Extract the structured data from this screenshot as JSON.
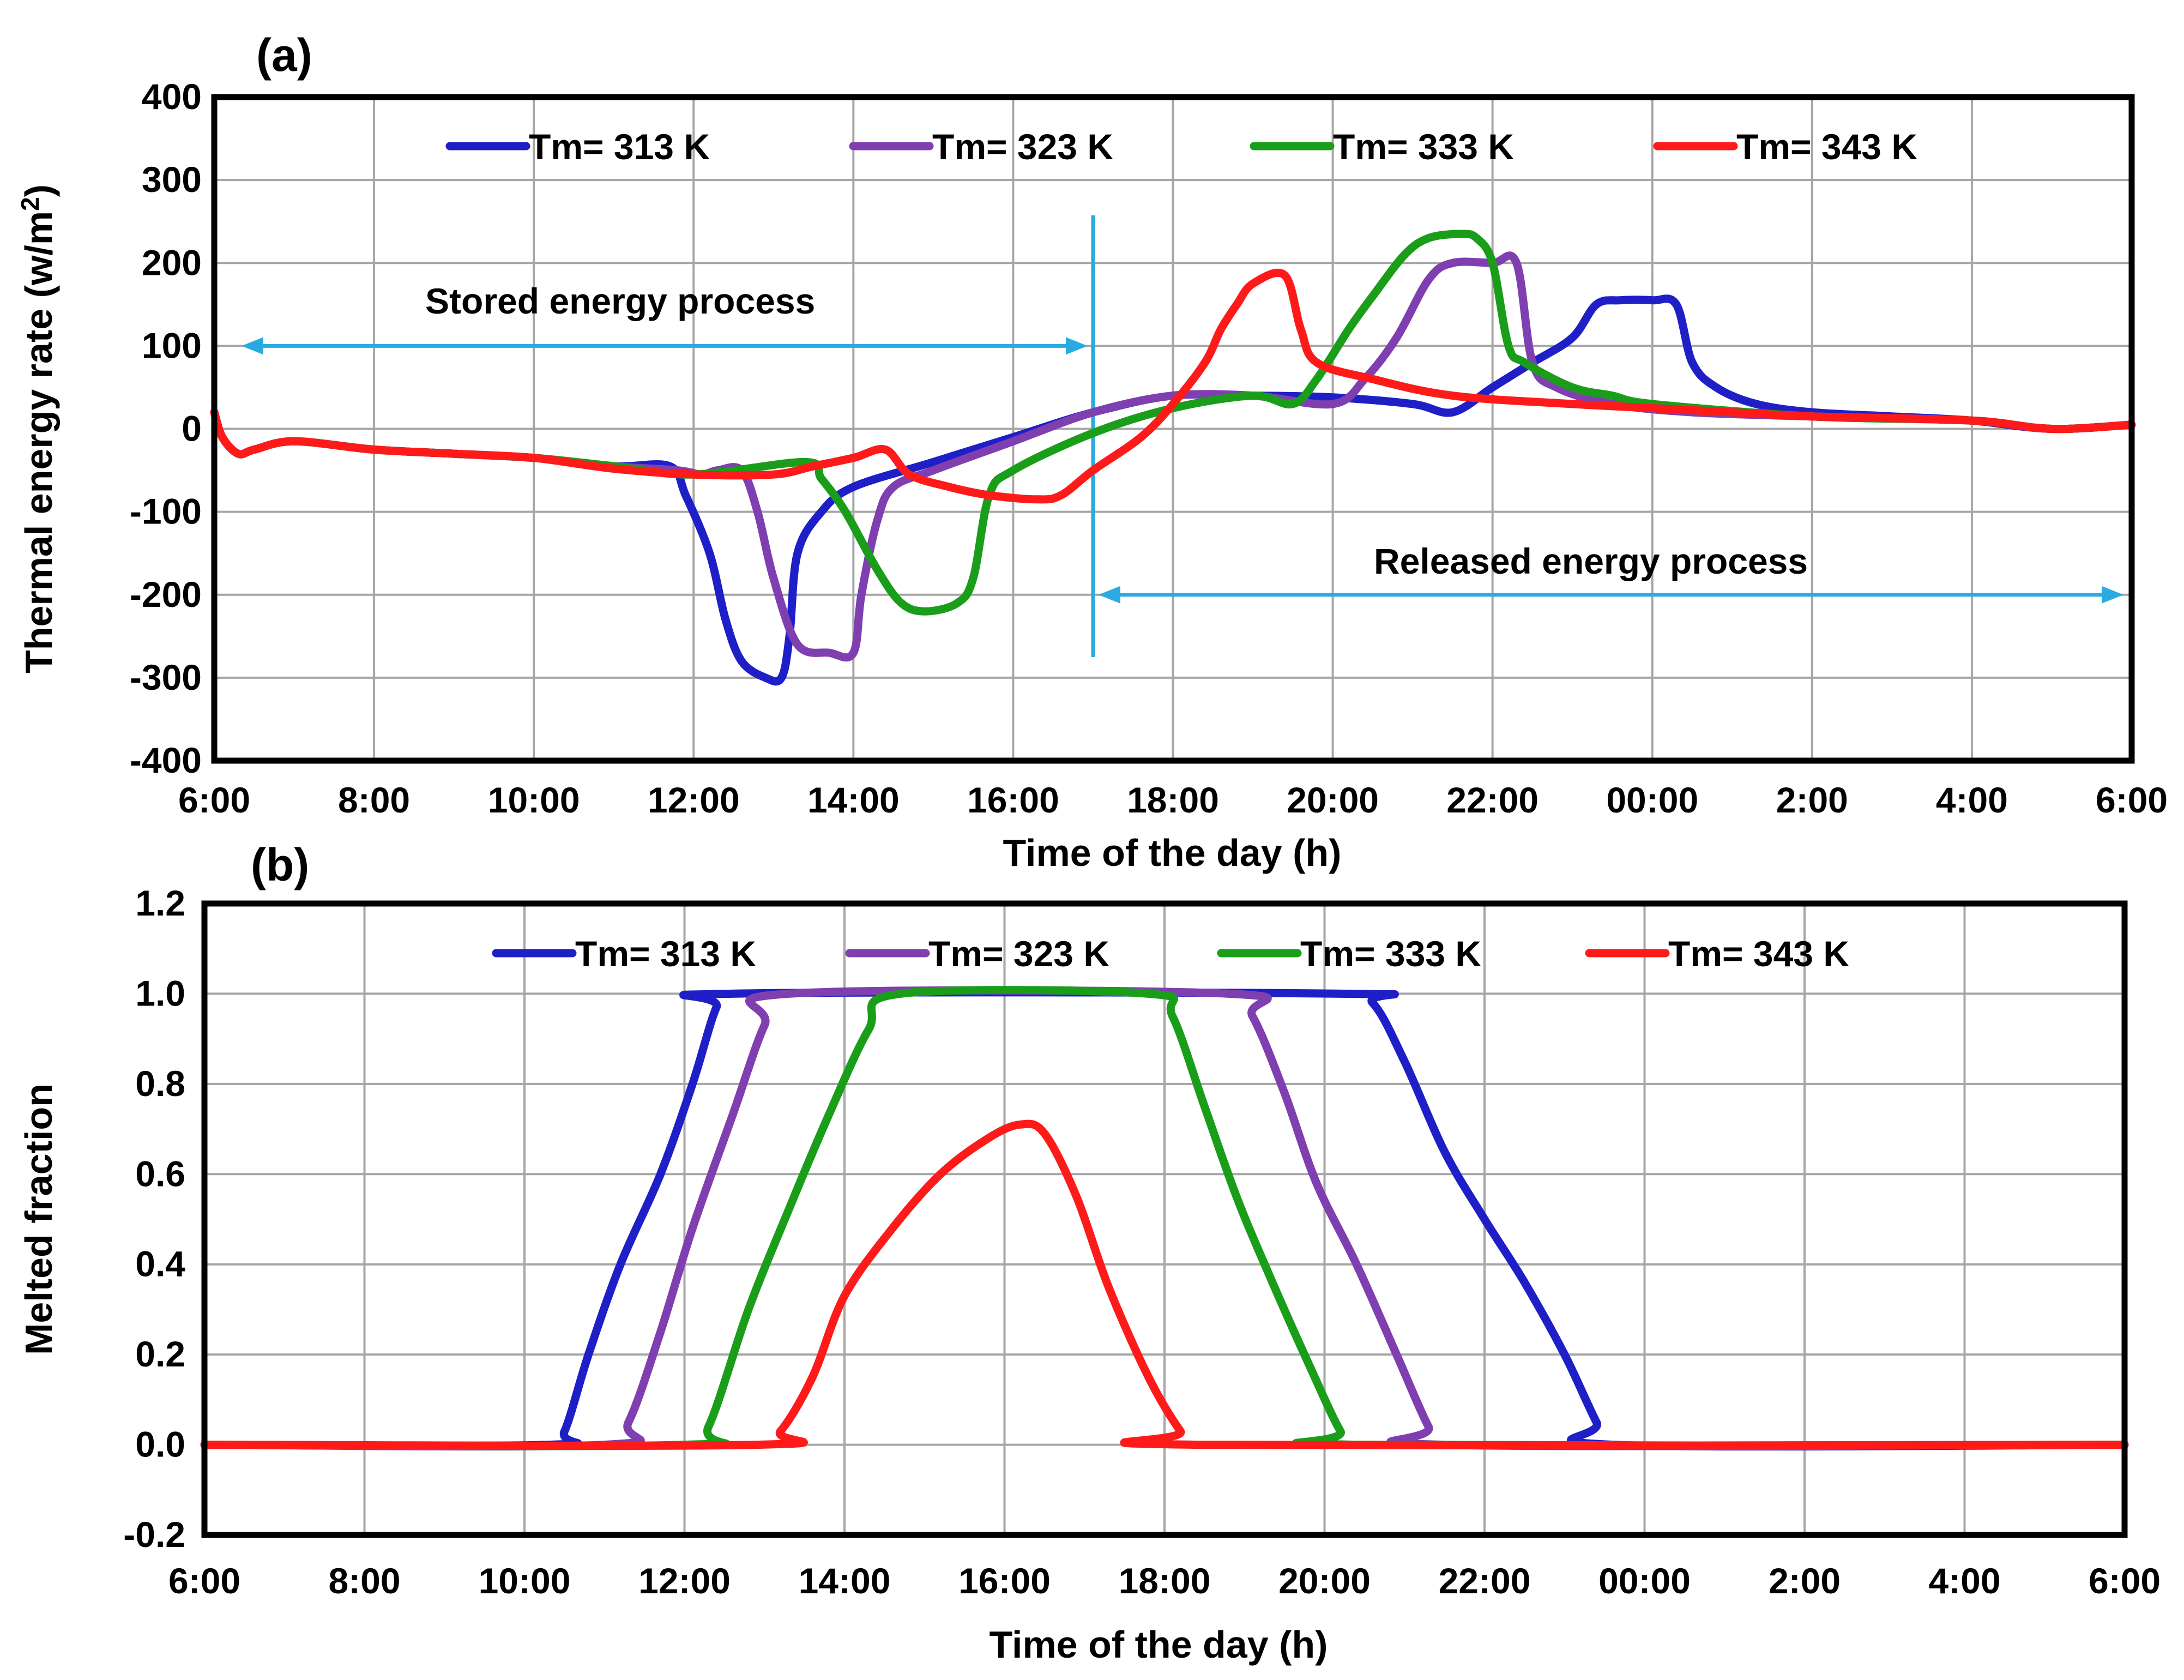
{
  "chart_data": [
    {
      "type": "line",
      "panel_label": "(a)",
      "ylabel": "Thermal energy  rate (w/m2)",
      "xlabel": "Time of the day (h)",
      "ylim": [
        -400,
        400
      ],
      "yticks": [
        {
          "v": 400,
          "label": "400"
        },
        {
          "v": 300,
          "label": "300"
        },
        {
          "v": 200,
          "label": "200"
        },
        {
          "v": 100,
          "label": "100"
        },
        {
          "v": 0,
          "label": "0"
        },
        {
          "v": -100,
          "label": "-100"
        },
        {
          "v": -200,
          "label": "-200"
        },
        {
          "v": -300,
          "label": "-300"
        },
        {
          "v": -400,
          "label": "-400"
        }
      ],
      "xlim": [
        0,
        24
      ],
      "xticks": [
        "6:00",
        "8:00",
        "10:00",
        "12:00",
        "14:00",
        "16:00",
        "18:00",
        "20:00",
        "22:00",
        "00:00",
        "2:00",
        "4:00",
        "6:00"
      ],
      "legend": [
        "Tm= 313 K",
        "Tm= 323 K",
        "Tm= 333 K",
        "Tm= 343 K"
      ],
      "annotations": {
        "stored": "Stored energy process",
        "released": "Released energy process",
        "divider_hours": 11.0
      },
      "series": [
        {
          "name": "Tm= 313 K",
          "color": "#1f1fc8",
          "points": [
            [
              0,
              20
            ],
            [
              0.1,
              -10
            ],
            [
              0.3,
              -30
            ],
            [
              0.5,
              -25
            ],
            [
              1,
              -15
            ],
            [
              2,
              -25
            ],
            [
              3,
              -30
            ],
            [
              4,
              -35
            ],
            [
              5,
              -45
            ],
            [
              5.7,
              -45
            ],
            [
              5.9,
              -80
            ],
            [
              6.2,
              -150
            ],
            [
              6.4,
              -230
            ],
            [
              6.6,
              -280
            ],
            [
              6.9,
              -300
            ],
            [
              7.1,
              -300
            ],
            [
              7.2,
              -250
            ],
            [
              7.3,
              -150
            ],
            [
              7.6,
              -100
            ],
            [
              8,
              -70
            ],
            [
              9,
              -40
            ],
            [
              10,
              -10
            ],
            [
              11,
              20
            ],
            [
              12,
              40
            ],
            [
              13,
              40
            ],
            [
              14,
              38
            ],
            [
              15,
              30
            ],
            [
              15.5,
              20
            ],
            [
              16,
              50
            ],
            [
              16.5,
              80
            ],
            [
              17,
              110
            ],
            [
              17.3,
              150
            ],
            [
              17.6,
              155
            ],
            [
              18,
              155
            ],
            [
              18.3,
              150
            ],
            [
              18.5,
              80
            ],
            [
              18.8,
              50
            ],
            [
              19.3,
              30
            ],
            [
              20,
              20
            ],
            [
              21,
              15
            ],
            [
              22,
              10
            ],
            [
              23,
              0
            ],
            [
              24,
              5
            ]
          ]
        },
        {
          "name": "Tm= 323 K",
          "color": "#7f3fb0",
          "points": [
            [
              0,
              20
            ],
            [
              0.1,
              -10
            ],
            [
              0.3,
              -30
            ],
            [
              0.5,
              -25
            ],
            [
              1,
              -15
            ],
            [
              2,
              -25
            ],
            [
              3,
              -30
            ],
            [
              4,
              -35
            ],
            [
              5,
              -45
            ],
            [
              5.8,
              -50
            ],
            [
              6.1,
              -55
            ],
            [
              6.3,
              -50
            ],
            [
              6.6,
              -50
            ],
            [
              6.8,
              -100
            ],
            [
              7.0,
              -180
            ],
            [
              7.3,
              -260
            ],
            [
              7.7,
              -270
            ],
            [
              8.0,
              -270
            ],
            [
              8.1,
              -200
            ],
            [
              8.3,
              -110
            ],
            [
              8.5,
              -70
            ],
            [
              9,
              -50
            ],
            [
              10,
              -15
            ],
            [
              11,
              20
            ],
            [
              12,
              40
            ],
            [
              13,
              40
            ],
            [
              14,
              30
            ],
            [
              14.4,
              60
            ],
            [
              14.8,
              110
            ],
            [
              15.2,
              180
            ],
            [
              15.5,
              200
            ],
            [
              16,
              200
            ],
            [
              16.3,
              200
            ],
            [
              16.5,
              80
            ],
            [
              16.8,
              50
            ],
            [
              17.5,
              30
            ],
            [
              18.5,
              20
            ],
            [
              20,
              15
            ],
            [
              22,
              10
            ],
            [
              23,
              0
            ],
            [
              24,
              5
            ]
          ]
        },
        {
          "name": "Tm= 333 K",
          "color": "#1a9e1a",
          "points": [
            [
              0,
              20
            ],
            [
              0.1,
              -10
            ],
            [
              0.3,
              -30
            ],
            [
              0.5,
              -25
            ],
            [
              1,
              -15
            ],
            [
              2,
              -25
            ],
            [
              3,
              -30
            ],
            [
              4,
              -35
            ],
            [
              5,
              -45
            ],
            [
              6,
              -55
            ],
            [
              7.4,
              -40
            ],
            [
              7.6,
              -60
            ],
            [
              7.9,
              -100
            ],
            [
              8.3,
              -170
            ],
            [
              8.6,
              -210
            ],
            [
              8.9,
              -220
            ],
            [
              9.3,
              -210
            ],
            [
              9.5,
              -180
            ],
            [
              9.7,
              -80
            ],
            [
              10,
              -50
            ],
            [
              11,
              -5
            ],
            [
              12,
              25
            ],
            [
              13,
              40
            ],
            [
              13.5,
              30
            ],
            [
              13.8,
              60
            ],
            [
              14.2,
              120
            ],
            [
              14.5,
              160
            ],
            [
              14.9,
              210
            ],
            [
              15.2,
              230
            ],
            [
              15.6,
              235
            ],
            [
              15.8,
              230
            ],
            [
              16.0,
              200
            ],
            [
              16.2,
              100
            ],
            [
              16.4,
              80
            ],
            [
              17,
              50
            ],
            [
              17.5,
              40
            ],
            [
              18,
              30
            ],
            [
              20,
              15
            ],
            [
              22,
              10
            ],
            [
              23,
              0
            ],
            [
              24,
              5
            ]
          ]
        },
        {
          "name": "Tm= 343 K",
          "color": "#ff1a1a",
          "points": [
            [
              0,
              20
            ],
            [
              0.1,
              -10
            ],
            [
              0.3,
              -30
            ],
            [
              0.5,
              -25
            ],
            [
              1,
              -15
            ],
            [
              2,
              -25
            ],
            [
              3,
              -30
            ],
            [
              4,
              -35
            ],
            [
              5,
              -48
            ],
            [
              6,
              -55
            ],
            [
              7,
              -55
            ],
            [
              7.5,
              -45
            ],
            [
              8.0,
              -35
            ],
            [
              8.4,
              -25
            ],
            [
              8.7,
              -55
            ],
            [
              9.2,
              -70
            ],
            [
              9.7,
              -80
            ],
            [
              10.3,
              -85
            ],
            [
              10.6,
              -80
            ],
            [
              11,
              -50
            ],
            [
              11.6,
              -10
            ],
            [
              12,
              30
            ],
            [
              12.4,
              80
            ],
            [
              12.6,
              120
            ],
            [
              12.8,
              150
            ],
            [
              13.0,
              175
            ],
            [
              13.4,
              185
            ],
            [
              13.6,
              120
            ],
            [
              13.8,
              80
            ],
            [
              14.5,
              60
            ],
            [
              15.5,
              40
            ],
            [
              17,
              30
            ],
            [
              18,
              25
            ],
            [
              19,
              20
            ],
            [
              20,
              15
            ],
            [
              22,
              10
            ],
            [
              23,
              0
            ],
            [
              24,
              5
            ]
          ]
        }
      ]
    },
    {
      "type": "line",
      "panel_label": "(b)",
      "ylabel": "Melted  fraction",
      "xlabel": "Time of the day (h)",
      "ylim": [
        -0.2,
        1.2
      ],
      "yticks": [
        {
          "v": 1.2,
          "label": "1.2"
        },
        {
          "v": 1.0,
          "label": "1.0"
        },
        {
          "v": 0.8,
          "label": "0.8"
        },
        {
          "v": 0.6,
          "label": "0.6"
        },
        {
          "v": 0.4,
          "label": "0.4"
        },
        {
          "v": 0.2,
          "label": "0.2"
        },
        {
          "v": 0.0,
          "label": "0.0"
        },
        {
          "v": -0.2,
          "label": "-0.2"
        }
      ],
      "xlim": [
        0,
        24
      ],
      "xticks": [
        "6:00",
        "8:00",
        "10:00",
        "12:00",
        "14:00",
        "16:00",
        "18:00",
        "20:00",
        "22:00",
        "00:00",
        "2:00",
        "4:00",
        "6:00"
      ],
      "legend": [
        "Tm= 313 K",
        "Tm= 323 K",
        "Tm= 333 K",
        "Tm= 343 K"
      ],
      "series": [
        {
          "name": "Tm= 313 K",
          "color": "#1f1fc8",
          "points": [
            [
              0,
              0
            ],
            [
              4.3,
              0
            ],
            [
              4.5,
              0.03
            ],
            [
              4.8,
              0.2
            ],
            [
              5.2,
              0.4
            ],
            [
              5.7,
              0.6
            ],
            [
              6.1,
              0.8
            ],
            [
              6.4,
              0.97
            ],
            [
              6.6,
              1.0
            ],
            [
              14.2,
              1.0
            ],
            [
              14.6,
              0.98
            ],
            [
              15,
              0.85
            ],
            [
              15.5,
              0.65
            ],
            [
              16,
              0.5
            ],
            [
              16.5,
              0.36
            ],
            [
              17,
              0.2
            ],
            [
              17.4,
              0.05
            ],
            [
              17.6,
              0
            ],
            [
              24,
              0
            ]
          ]
        },
        {
          "name": "Tm= 323 K",
          "color": "#7f3fb0",
          "points": [
            [
              0,
              0
            ],
            [
              5.0,
              0
            ],
            [
              5.3,
              0.05
            ],
            [
              5.7,
              0.25
            ],
            [
              6.1,
              0.48
            ],
            [
              6.6,
              0.73
            ],
            [
              7.0,
              0.93
            ],
            [
              7.3,
              1.0
            ],
            [
              12.8,
              1.0
            ],
            [
              13.1,
              0.95
            ],
            [
              13.5,
              0.78
            ],
            [
              13.9,
              0.58
            ],
            [
              14.4,
              0.4
            ],
            [
              14.9,
              0.2
            ],
            [
              15.3,
              0.04
            ],
            [
              15.5,
              0
            ],
            [
              24,
              0
            ]
          ]
        },
        {
          "name": "Tm= 333 K",
          "color": "#1a9e1a",
          "points": [
            [
              0,
              0
            ],
            [
              6.0,
              0
            ],
            [
              6.3,
              0.04
            ],
            [
              6.8,
              0.3
            ],
            [
              7.3,
              0.52
            ],
            [
              7.8,
              0.73
            ],
            [
              8.3,
              0.92
            ],
            [
              8.7,
              1.0
            ],
            [
              11.8,
              1.0
            ],
            [
              12.1,
              0.95
            ],
            [
              12.5,
              0.75
            ],
            [
              12.9,
              0.55
            ],
            [
              13.3,
              0.38
            ],
            [
              13.8,
              0.18
            ],
            [
              14.2,
              0.03
            ],
            [
              14.4,
              0
            ],
            [
              24,
              0
            ]
          ]
        },
        {
          "name": "Tm= 343 K",
          "color": "#ff1a1a",
          "points": [
            [
              0,
              0
            ],
            [
              6.9,
              0
            ],
            [
              7.2,
              0.03
            ],
            [
              7.6,
              0.15
            ],
            [
              8.0,
              0.33
            ],
            [
              8.6,
              0.48
            ],
            [
              9.2,
              0.6
            ],
            [
              9.8,
              0.68
            ],
            [
              10.2,
              0.71
            ],
            [
              10.5,
              0.69
            ],
            [
              10.9,
              0.55
            ],
            [
              11.3,
              0.35
            ],
            [
              11.8,
              0.15
            ],
            [
              12.2,
              0.03
            ],
            [
              12.4,
              0
            ],
            [
              24,
              0
            ]
          ]
        }
      ]
    }
  ]
}
